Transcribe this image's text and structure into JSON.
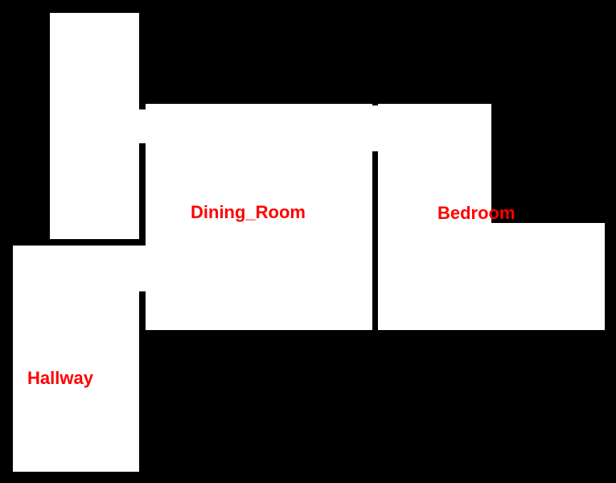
{
  "floorplan": {
    "background_color": "#000000",
    "room_color": "#ffffff",
    "label_color": "#ff0000",
    "rooms": [
      {
        "id": "unlabeled-room",
        "label": ""
      },
      {
        "id": "dining-room",
        "label": "Dining_Room"
      },
      {
        "id": "bedroom",
        "label": "Bedroom"
      },
      {
        "id": "hallway",
        "label": "Hallway"
      }
    ]
  }
}
